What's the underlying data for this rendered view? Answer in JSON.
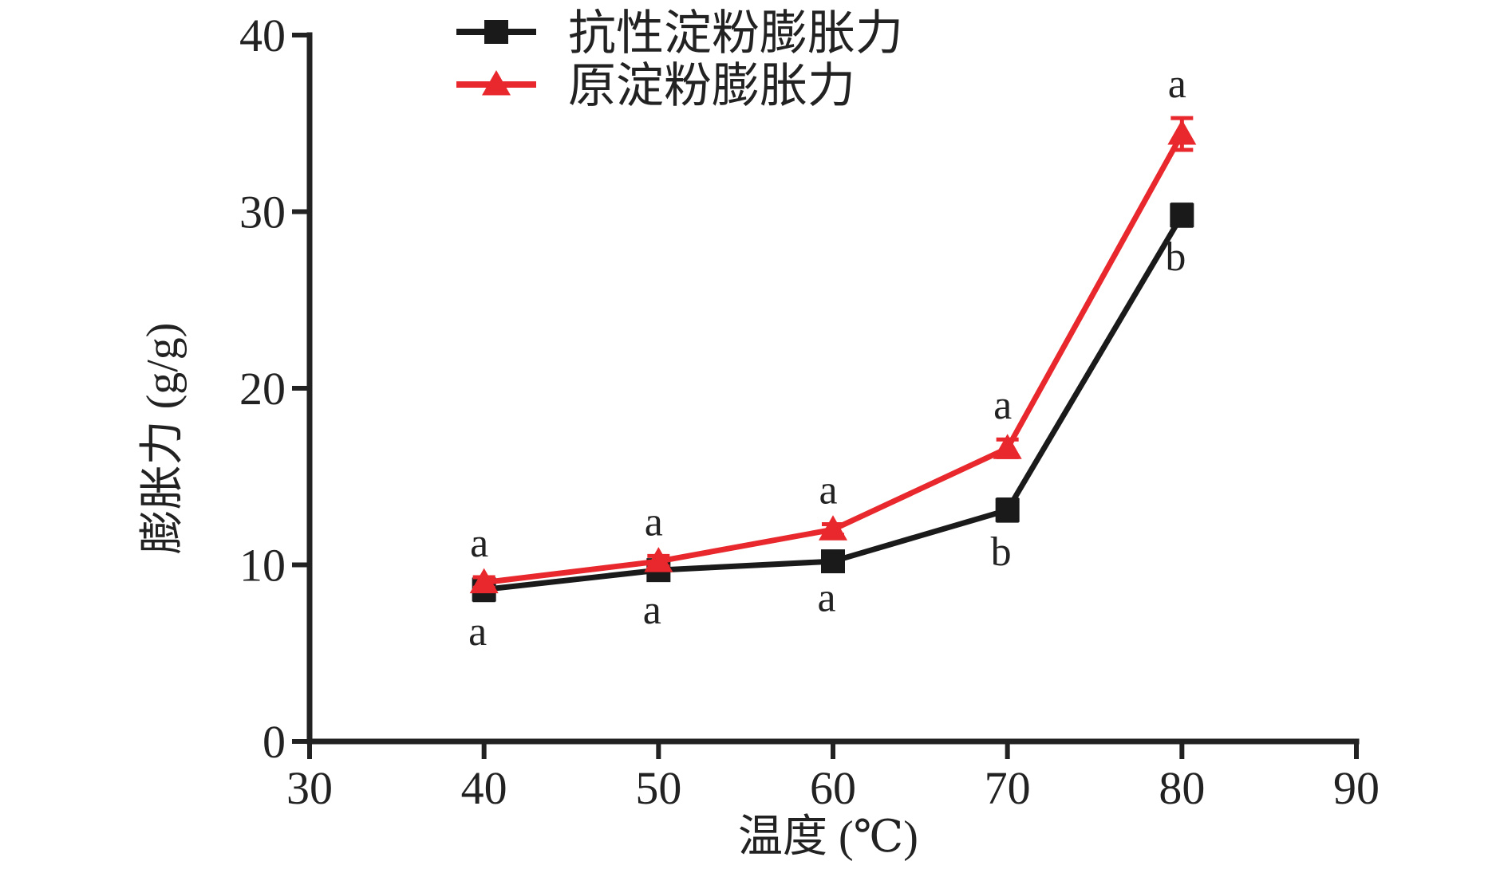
{
  "chart_data": {
    "type": "line",
    "xlabel": "温度 (℃)",
    "ylabel": "膨胀力 (g/g)",
    "xlim": [
      30,
      90
    ],
    "ylim": [
      0,
      40
    ],
    "xticks": [
      30,
      40,
      50,
      60,
      70,
      80,
      90
    ],
    "yticks": [
      0,
      10,
      20,
      30,
      40
    ],
    "grid": false,
    "legend_position": "top-center",
    "x": [
      40,
      50,
      60,
      70,
      80
    ],
    "series": [
      {
        "name": "抗性淀粉膨胀力",
        "color": "#1a1a1a",
        "marker": "square",
        "values": [
          8.6,
          9.7,
          10.2,
          13.1,
          29.8
        ],
        "errors": [
          0.6,
          0.5,
          0.3,
          0.6,
          0.6
        ],
        "significance": [
          "a",
          "a",
          "a",
          "b",
          "b"
        ],
        "label_side": "below"
      },
      {
        "name": "原淀粉膨胀力",
        "color": "#e8282d",
        "marker": "triangle",
        "values": [
          9.0,
          10.2,
          12.0,
          16.6,
          34.4
        ],
        "errors": [
          0.3,
          0.3,
          0.3,
          0.5,
          0.9
        ],
        "significance": [
          "a",
          "a",
          "a",
          "a",
          "a"
        ],
        "label_side": "above"
      }
    ]
  }
}
